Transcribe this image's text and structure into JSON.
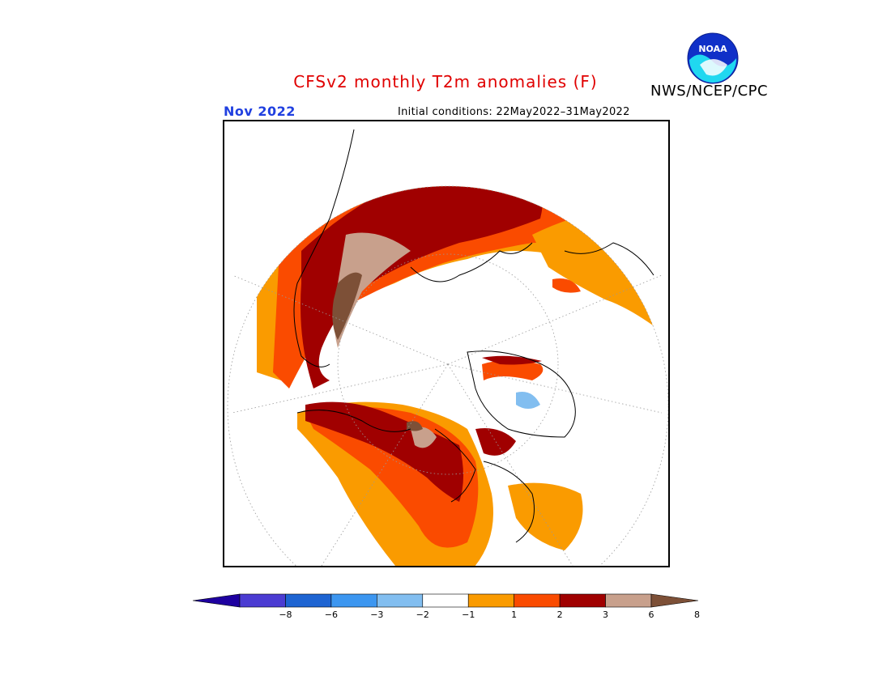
{
  "header": {
    "title": "CFSv2 monthly T2m anomalies (F)",
    "month": "Nov 2022",
    "initial_conditions": "Initial conditions: 22May2022–31May2022",
    "agency": "NWS/NCEP/CPC",
    "logo_text": "NOAA"
  },
  "legend": {
    "ticks": [
      "−8",
      "−6",
      "−3",
      "−2",
      "−1",
      "1",
      "2",
      "3",
      "6",
      "8"
    ],
    "colors": [
      "#1e00a0",
      "#4b3cd2",
      "#1e64d2",
      "#3c96f0",
      "#82bef0",
      "#ffffff",
      "#fa9b00",
      "#fa4b00",
      "#a00000",
      "#c8a08c",
      "#7d5037"
    ]
  },
  "map": {
    "projection": "polar-stereographic",
    "land_outline_color": "#000000",
    "graticule_color": "#999999"
  }
}
